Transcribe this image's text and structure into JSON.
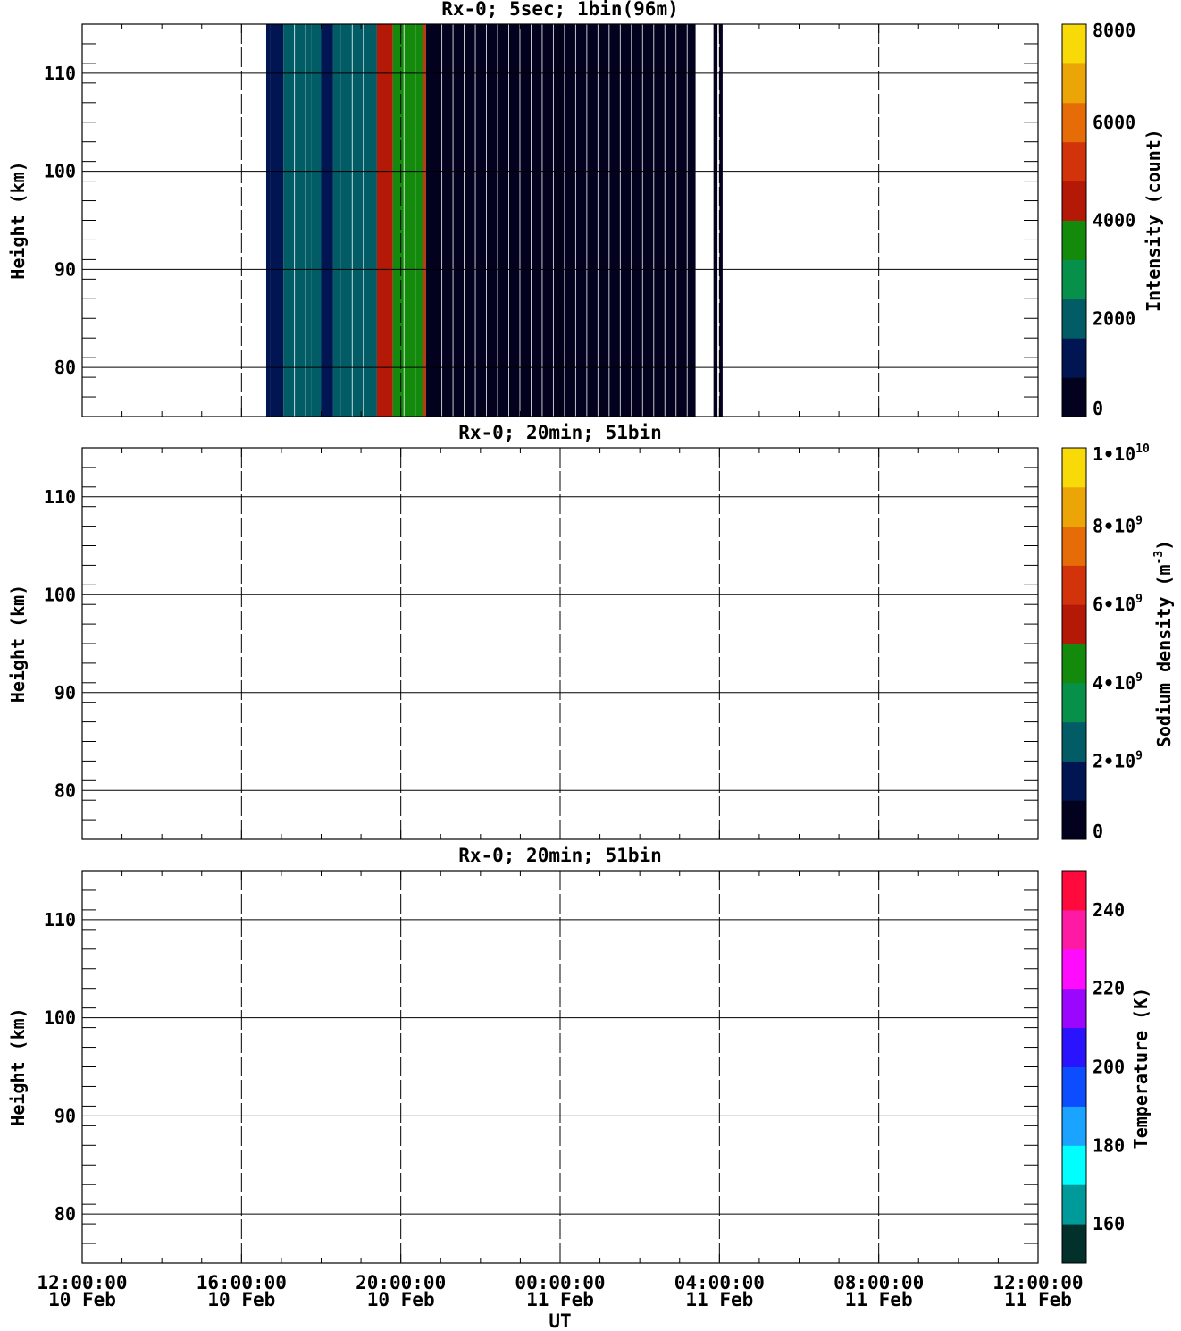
{
  "figure": {
    "x_axis_label": "UT",
    "x_ticks": [
      {
        "time": "12:00:00",
        "date": "10 Feb"
      },
      {
        "time": "16:00:00",
        "date": "10 Feb"
      },
      {
        "time": "20:00:00",
        "date": "10 Feb"
      },
      {
        "time": "00:00:00",
        "date": "11 Feb"
      },
      {
        "time": "04:00:00",
        "date": "11 Feb"
      },
      {
        "time": "08:00:00",
        "date": "11 Feb"
      },
      {
        "time": "12:00:00",
        "date": "11 Feb"
      }
    ]
  },
  "chart_data": [
    {
      "type": "heatmap",
      "title": "Rx-0;  5sec; 1bin(96m)",
      "ylabel": "Height (km)",
      "ylim": [
        75,
        115
      ],
      "yticks": [
        80,
        90,
        100,
        110
      ],
      "xlim": [
        "10 Feb 12:00:00",
        "11 Feb 12:00:00"
      ],
      "xlim_hours": [
        0,
        24
      ],
      "grid": true,
      "colorbar": {
        "label": "Intensity (count)",
        "range": [
          0,
          8000
        ],
        "tick_labels": [
          "0",
          "2000",
          "4000",
          "6000",
          "8000"
        ],
        "colors": [
          "#03021e",
          "#021553",
          "#025c66",
          "#06904a",
          "#138a0c",
          "#b41806",
          "#d2330a",
          "#e56c07",
          "#eba506",
          "#f7da07"
        ]
      },
      "columns": [
        {
          "start_h": 4.62,
          "end_h": 4.72,
          "value": 1500
        },
        {
          "start_h": 4.72,
          "end_h": 5.05,
          "value": 900
        },
        {
          "start_h": 5.05,
          "end_h": 5.75,
          "value": 2100
        },
        {
          "start_h": 5.75,
          "end_h": 6.0,
          "value": 2100
        },
        {
          "start_h": 6.0,
          "end_h": 6.3,
          "value": 1000
        },
        {
          "start_h": 6.3,
          "end_h": 6.5,
          "value": 2200
        },
        {
          "start_h": 6.5,
          "end_h": 7.2,
          "value": 2200
        },
        {
          "start_h": 7.2,
          "end_h": 7.4,
          "value": 1800
        },
        {
          "start_h": 7.4,
          "end_h": 7.8,
          "value": 4100
        },
        {
          "start_h": 7.8,
          "end_h": 8.4,
          "value": 3500
        },
        {
          "start_h": 8.4,
          "end_h": 8.55,
          "value": 3800
        },
        {
          "start_h": 8.55,
          "end_h": 8.63,
          "value": 5200
        },
        {
          "start_h": 8.63,
          "end_h": 8.75,
          "value": 600
        },
        {
          "start_h": 8.75,
          "end_h": 15.4,
          "value": 300
        },
        {
          "start_h": 15.85,
          "end_h": 15.95,
          "value": 300
        },
        {
          "start_h": 16.0,
          "end_h": 16.08,
          "value": 300
        }
      ]
    },
    {
      "type": "heatmap",
      "title": "Rx-0; 20min; 51bin",
      "ylabel": "Height (km)",
      "ylim": [
        75,
        115
      ],
      "yticks": [
        80,
        90,
        100,
        110
      ],
      "xlim_hours": [
        0,
        24
      ],
      "grid": true,
      "colorbar": {
        "label_main": "Sodium density (m",
        "label_exp": "-3",
        "label_tail": ")",
        "range": [
          0,
          10000000000
        ],
        "tick_labels": [
          {
            "base": "0",
            "exp": ""
          },
          {
            "base": "2•10",
            "exp": "9"
          },
          {
            "base": "4•10",
            "exp": "9"
          },
          {
            "base": "6•10",
            "exp": "9"
          },
          {
            "base": "8•10",
            "exp": "9"
          },
          {
            "base": "1•10",
            "exp": "10"
          }
        ],
        "colors": [
          "#03021e",
          "#021553",
          "#025c66",
          "#06904a",
          "#138a0c",
          "#b41806",
          "#d2330a",
          "#e56c07",
          "#eba506",
          "#f7da07"
        ]
      },
      "columns": []
    },
    {
      "type": "heatmap",
      "title": "Rx-0; 20min; 51bin",
      "ylabel": "Height (km)",
      "ylim": [
        75,
        115
      ],
      "yticks": [
        80,
        90,
        100,
        110
      ],
      "xlim_hours": [
        0,
        24
      ],
      "grid": true,
      "colorbar": {
        "label": "Temperature (K)",
        "range": [
          150,
          250
        ],
        "tick_labels": [
          "160",
          "180",
          "200",
          "220",
          "240"
        ],
        "colors": [
          "#02312b",
          "#009a9a",
          "#00ffff",
          "#1aa3ff",
          "#0c4dff",
          "#2a14ff",
          "#9b06ff",
          "#ff0cff",
          "#ff1aa3",
          "#ff0a3c"
        ]
      },
      "columns": []
    }
  ]
}
